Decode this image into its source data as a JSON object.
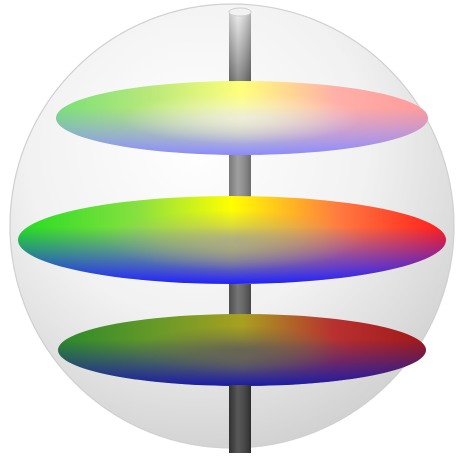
{
  "diagram": {
    "sphere_color": "#d9d9d9",
    "axis_top_color": "#e4e4e4",
    "axis_bottom_color": "#3c3c3c",
    "hue_colors": {
      "red": "#ff0000",
      "yellow": "#ffff00",
      "green": "#00ff00",
      "blue": "#0000ff"
    },
    "slices": [
      {
        "name": "top",
        "lightness": "light"
      },
      {
        "name": "middle",
        "lightness": "medium"
      },
      {
        "name": "bottom",
        "lightness": "dark"
      }
    ]
  }
}
